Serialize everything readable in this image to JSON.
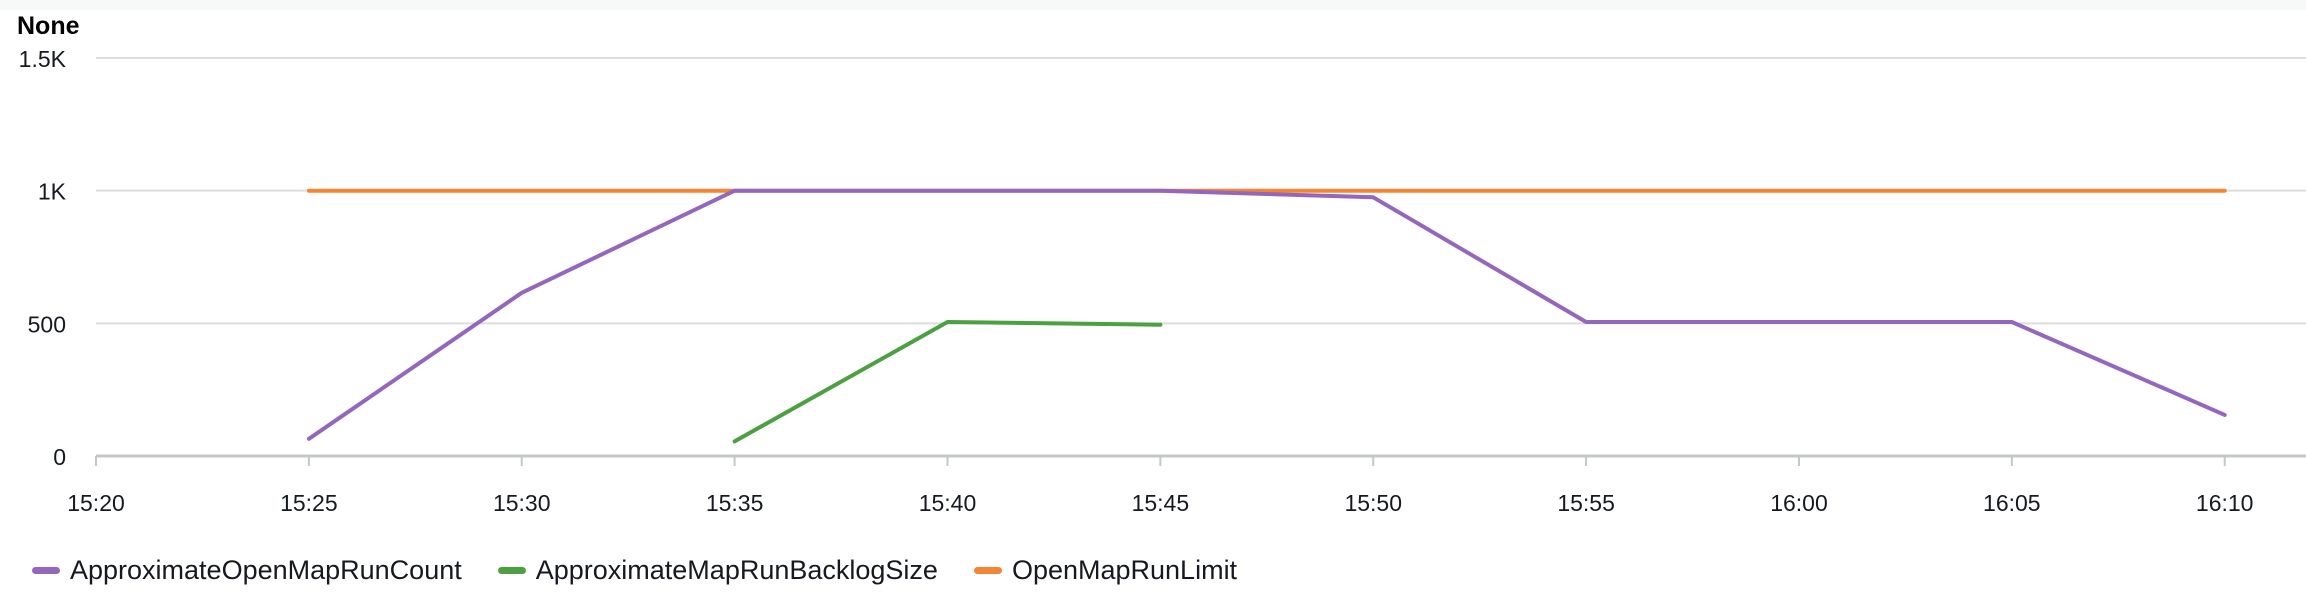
{
  "chart_data": {
    "type": "line",
    "title": "None",
    "xlabel": "",
    "ylabel": "",
    "x_ticks": [
      "15:20",
      "15:25",
      "15:30",
      "15:35",
      "15:40",
      "15:45",
      "15:50",
      "15:55",
      "16:00",
      "16:05",
      "16:10"
    ],
    "y_ticks": [
      {
        "value": 0,
        "label": "0"
      },
      {
        "value": 500,
        "label": "500"
      },
      {
        "value": 1000,
        "label": "1K"
      },
      {
        "value": 1500,
        "label": "1.5K"
      }
    ],
    "xlim": [
      "15:20",
      "16:10"
    ],
    "ylim": [
      0,
      1500
    ],
    "grid": true,
    "legend_position": "bottom-left",
    "series": [
      {
        "name": "ApproximateOpenMapRunCount",
        "color": "#9467bd",
        "points": [
          {
            "x": "15:25",
            "y": 65
          },
          {
            "x": "15:30",
            "y": 615
          },
          {
            "x": "15:35",
            "y": 1000
          },
          {
            "x": "15:40",
            "y": 1000
          },
          {
            "x": "15:45",
            "y": 1000
          },
          {
            "x": "15:50",
            "y": 975
          },
          {
            "x": "15:55",
            "y": 505
          },
          {
            "x": "16:00",
            "y": 505
          },
          {
            "x": "16:05",
            "y": 505
          },
          {
            "x": "16:10",
            "y": 155
          }
        ]
      },
      {
        "name": "ApproximateMapRunBacklogSize",
        "color": "#4ba03f",
        "points": [
          {
            "x": "15:35",
            "y": 55
          },
          {
            "x": "15:40",
            "y": 505
          },
          {
            "x": "15:45",
            "y": 495
          }
        ]
      },
      {
        "name": "OpenMapRunLimit",
        "color": "#f58535",
        "points": [
          {
            "x": "15:25",
            "y": 1000
          },
          {
            "x": "15:30",
            "y": 1000
          },
          {
            "x": "15:35",
            "y": 1000
          },
          {
            "x": "15:40",
            "y": 1000
          },
          {
            "x": "15:45",
            "y": 1000
          },
          {
            "x": "15:50",
            "y": 1000
          },
          {
            "x": "15:55",
            "y": 1000
          },
          {
            "x": "16:00",
            "y": 1000
          },
          {
            "x": "16:05",
            "y": 1000
          },
          {
            "x": "16:10",
            "y": 1000
          }
        ]
      }
    ]
  }
}
